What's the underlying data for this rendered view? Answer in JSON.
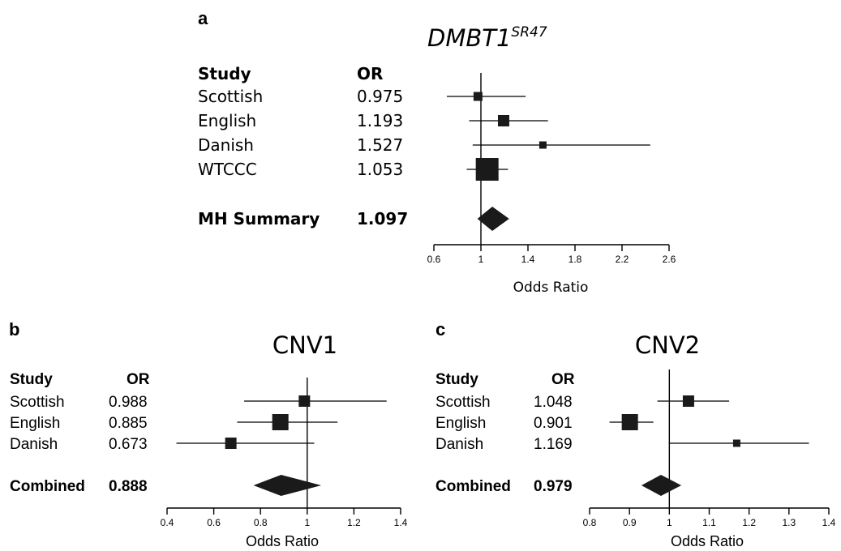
{
  "chart_data": [
    {
      "type": "forest",
      "panel_label": "a",
      "title_main": "DMBT1",
      "title_sup": "SR47",
      "col_study": "Study",
      "col_or": "OR",
      "xlabel": "Odds Ratio",
      "xlim": [
        0.6,
        2.6
      ],
      "xticks": [
        "0.6",
        "1",
        "1.4",
        "1.8",
        "2.2",
        "2.6"
      ],
      "reference_line": 1,
      "studies": [
        {
          "name": "Scottish",
          "or_text": "0.975",
          "or": 0.975,
          "ci": [
            0.71,
            1.38
          ],
          "weight": "small"
        },
        {
          "name": "English",
          "or_text": "1.193",
          "or": 1.193,
          "ci": [
            0.9,
            1.57
          ],
          "weight": "medium"
        },
        {
          "name": "Danish",
          "or_text": "1.527",
          "or": 1.527,
          "ci": [
            0.93,
            2.44
          ],
          "weight": "tiny"
        },
        {
          "name": "WTCCC",
          "or_text": "1.053",
          "or": 1.053,
          "ci": [
            0.88,
            1.23
          ],
          "weight": "large"
        }
      ],
      "summary": {
        "name": "MH Summary",
        "or_text": "1.097",
        "or": 1.097,
        "ci": [
          0.97,
          1.24
        ]
      }
    },
    {
      "type": "forest",
      "panel_label": "b",
      "title_main": "CNV1",
      "col_study": "Study",
      "col_or": "OR",
      "xlabel": "Odds Ratio",
      "xlim": [
        0.4,
        1.4
      ],
      "xticks": [
        "0.4",
        "0.6",
        "0.8",
        "1",
        "1.2",
        "1.4"
      ],
      "reference_line": 1,
      "studies": [
        {
          "name": "Scottish",
          "or_text": "0.988",
          "or": 0.988,
          "ci": [
            0.73,
            1.34
          ],
          "weight": "small"
        },
        {
          "name": "English",
          "or_text": "0.885",
          "or": 0.885,
          "ci": [
            0.7,
            1.13
          ],
          "weight": "medium"
        },
        {
          "name": "Danish",
          "or_text": "0.673",
          "or": 0.673,
          "ci": [
            0.44,
            1.03
          ],
          "weight": "small"
        }
      ],
      "summary": {
        "name": "Combined",
        "or_text": "0.888",
        "or": 0.888,
        "ci": [
          0.77,
          1.06
        ]
      }
    },
    {
      "type": "forest",
      "panel_label": "c",
      "title_main": "CNV2",
      "col_study": "Study",
      "col_or": "OR",
      "xlabel": "Odds Ratio",
      "xlim": [
        0.8,
        1.4
      ],
      "xticks": [
        "0.8",
        "0.9",
        "1",
        "1.1",
        "1.2",
        "1.3",
        "1.4"
      ],
      "reference_line": 1,
      "studies": [
        {
          "name": "Scottish",
          "or_text": "1.048",
          "or": 1.048,
          "ci": [
            0.97,
            1.15
          ],
          "weight": "small"
        },
        {
          "name": "English",
          "or_text": "0.901",
          "or": 0.901,
          "ci": [
            0.85,
            0.96
          ],
          "weight": "medium"
        },
        {
          "name": "Danish",
          "or_text": "1.169",
          "or": 1.169,
          "ci": [
            1.0,
            1.35
          ],
          "weight": "tiny"
        }
      ],
      "summary": {
        "name": "Combined",
        "or_text": "0.979",
        "or": 0.979,
        "ci": [
          0.93,
          1.03
        ]
      }
    }
  ]
}
